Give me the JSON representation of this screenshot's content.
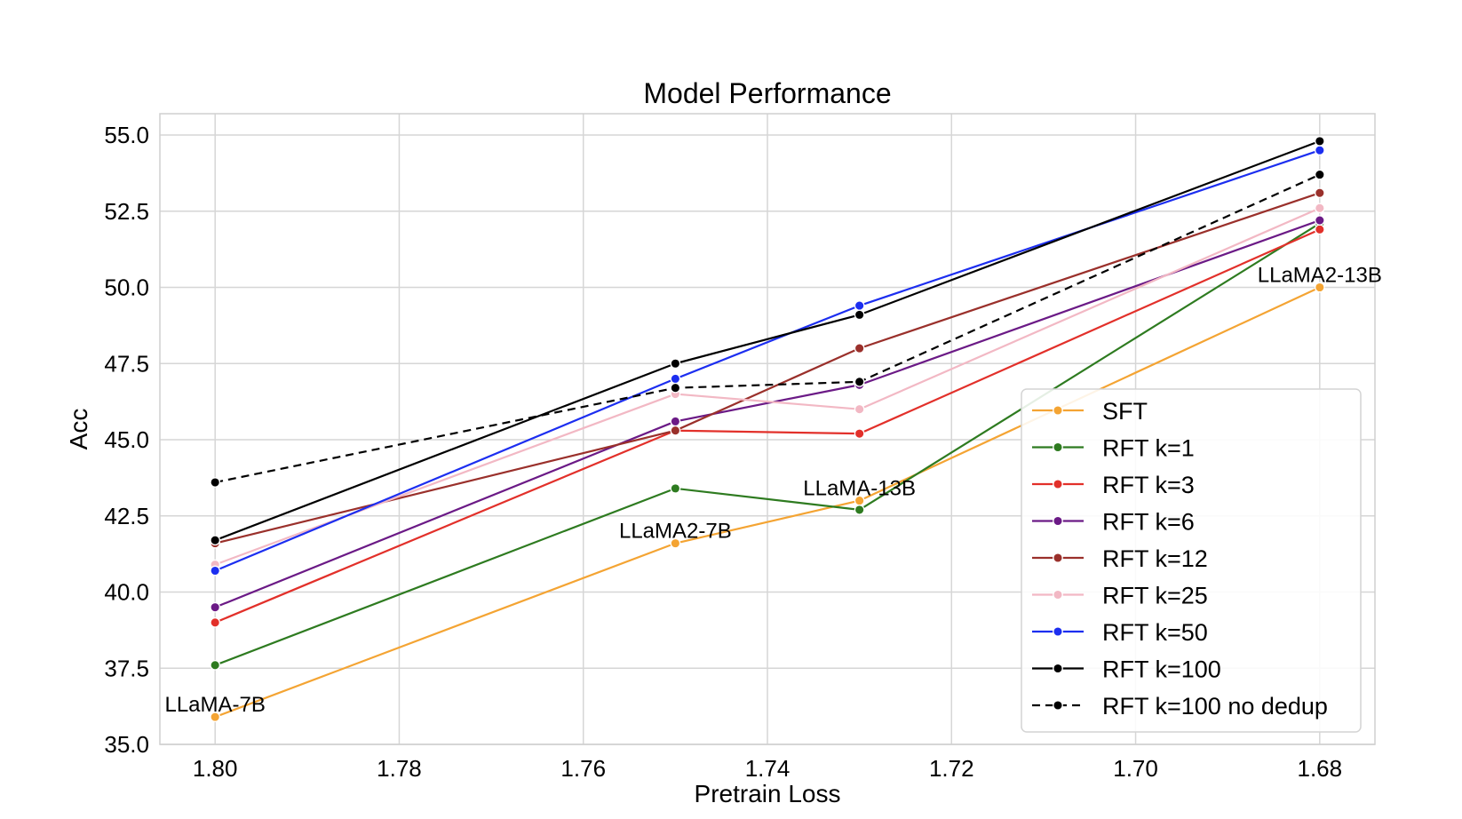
{
  "chart_data": {
    "type": "line",
    "title": "Model Performance",
    "xlabel": "Pretrain Loss",
    "ylabel": "Acc",
    "x": [
      1.8,
      1.75,
      1.73,
      1.68
    ],
    "xlim": [
      1.806,
      1.674
    ],
    "ylim": [
      35.0,
      55.7
    ],
    "xticks": [
      "1.80",
      "1.78",
      "1.76",
      "1.74",
      "1.72",
      "1.70",
      "1.68"
    ],
    "yticks": [
      "35.0",
      "37.5",
      "40.0",
      "42.5",
      "45.0",
      "47.5",
      "50.0",
      "52.5",
      "55.0"
    ],
    "grid": true,
    "legend_position": "lower-right",
    "series": [
      {
        "name": "SFT",
        "color": "#f4a433",
        "dashed": false,
        "values": [
          35.9,
          41.6,
          43.0,
          50.0
        ]
      },
      {
        "name": "RFT k=1",
        "color": "#2e7b20",
        "dashed": false,
        "values": [
          37.6,
          43.4,
          42.7,
          52.1
        ]
      },
      {
        "name": "RFT k=3",
        "color": "#e2302a",
        "dashed": false,
        "values": [
          39.0,
          45.3,
          45.2,
          51.9
        ]
      },
      {
        "name": "RFT k=6",
        "color": "#6b1a86",
        "dashed": false,
        "values": [
          39.5,
          45.6,
          46.8,
          52.2
        ]
      },
      {
        "name": "RFT k=12",
        "color": "#9a302b",
        "dashed": false,
        "values": [
          41.6,
          45.3,
          48.0,
          53.1
        ]
      },
      {
        "name": "RFT k=25",
        "color": "#f2b8c4",
        "dashed": false,
        "values": [
          40.9,
          46.5,
          46.0,
          52.6
        ]
      },
      {
        "name": "RFT k=50",
        "color": "#1c2ef0",
        "dashed": false,
        "values": [
          40.7,
          47.0,
          49.4,
          54.5
        ]
      },
      {
        "name": "RFT k=100",
        "color": "#000000",
        "dashed": false,
        "values": [
          41.7,
          47.5,
          49.1,
          54.8
        ]
      },
      {
        "name": "RFT k=100 no dedup",
        "color": "#000000",
        "dashed": true,
        "values": [
          43.6,
          46.7,
          46.9,
          53.7
        ]
      }
    ],
    "annotations": [
      {
        "text": "LLaMA-7B",
        "x": 1.8,
        "y": 35.9
      },
      {
        "text": "LLaMA2-7B",
        "x": 1.75,
        "y": 41.6
      },
      {
        "text": "LLaMA-13B",
        "x": 1.73,
        "y": 43.0
      },
      {
        "text": "LLaMA2-13B",
        "x": 1.68,
        "y": 50.0
      }
    ]
  }
}
